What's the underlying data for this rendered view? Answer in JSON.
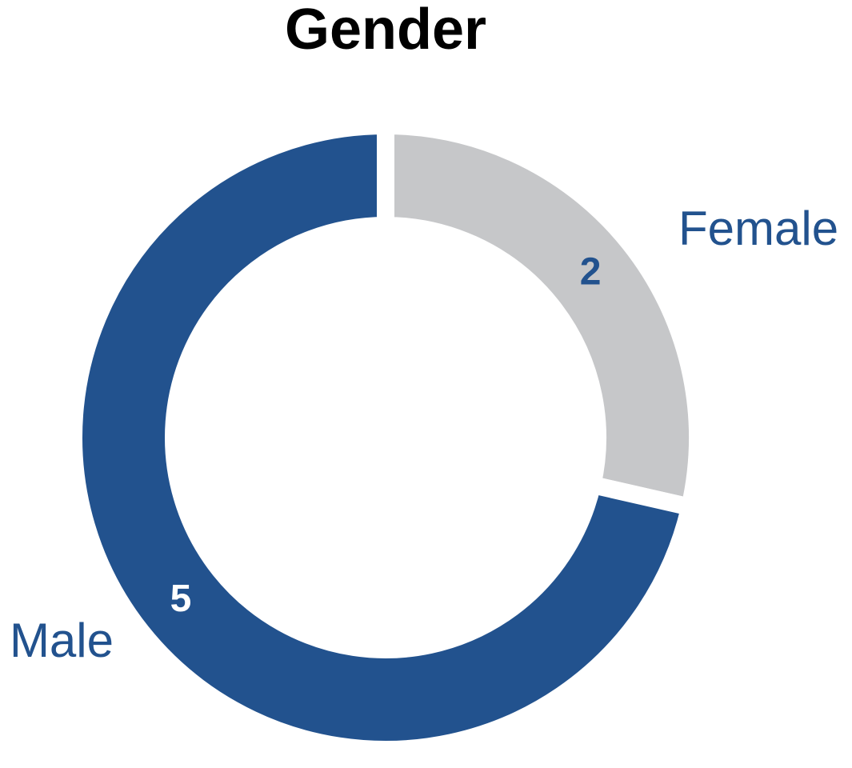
{
  "chart_data": {
    "type": "donut",
    "title": "Gender",
    "categories": [
      "Female",
      "Male"
    ],
    "values": [
      2,
      5
    ],
    "colors": [
      "#c6c7c9",
      "#22528e"
    ]
  }
}
